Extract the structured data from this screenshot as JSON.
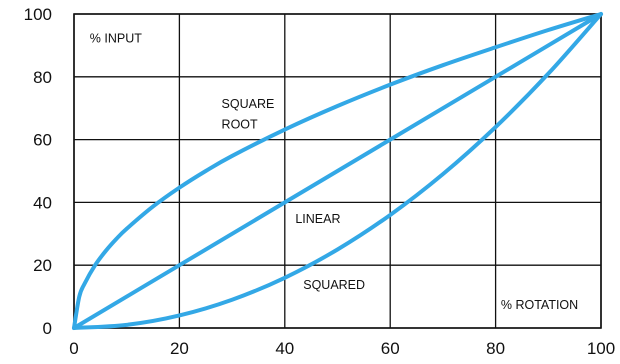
{
  "chart_data": {
    "type": "line",
    "title": "",
    "xlabel": "% ROTATION",
    "ylabel": "% INPUT",
    "xlim": [
      0,
      100
    ],
    "ylim": [
      0,
      100
    ],
    "x_ticks": [
      0,
      20,
      40,
      60,
      80,
      100
    ],
    "y_ticks": [
      0,
      20,
      40,
      60,
      80,
      100
    ],
    "grid": true,
    "curve_color": "#33a8e6",
    "series": [
      {
        "name": "SQUARE ROOT",
        "x": [
          0,
          1,
          2,
          4,
          6,
          8,
          10,
          15,
          20,
          25,
          30,
          40,
          50,
          60,
          70,
          80,
          90,
          100
        ],
        "y": [
          0,
          10,
          14.1,
          20,
          24.5,
          28.3,
          31.6,
          38.7,
          44.7,
          50,
          54.8,
          63.2,
          70.7,
          77.5,
          83.7,
          89.4,
          94.9,
          100
        ]
      },
      {
        "name": "LINEAR",
        "x": [
          0,
          20,
          40,
          60,
          80,
          100
        ],
        "y": [
          0,
          20,
          40,
          60,
          80,
          100
        ]
      },
      {
        "name": "SQUARED",
        "x": [
          0,
          10,
          20,
          30,
          40,
          50,
          60,
          70,
          80,
          90,
          100
        ],
        "y": [
          0,
          1,
          4,
          9,
          16,
          25,
          36,
          49,
          64,
          81,
          100
        ]
      }
    ],
    "annotations": [
      {
        "text": "% INPUT",
        "x": 3,
        "y": 91
      },
      {
        "text": "SQUARE",
        "x": 28,
        "y": 70
      },
      {
        "text": "ROOT",
        "x": 28,
        "y": 63.5
      },
      {
        "text": "LINEAR",
        "x": 42,
        "y": 33.5
      },
      {
        "text": "SQUARED",
        "x": 43.5,
        "y": 12.5
      },
      {
        "text": "% ROTATION",
        "x": 81,
        "y": 6
      }
    ]
  }
}
